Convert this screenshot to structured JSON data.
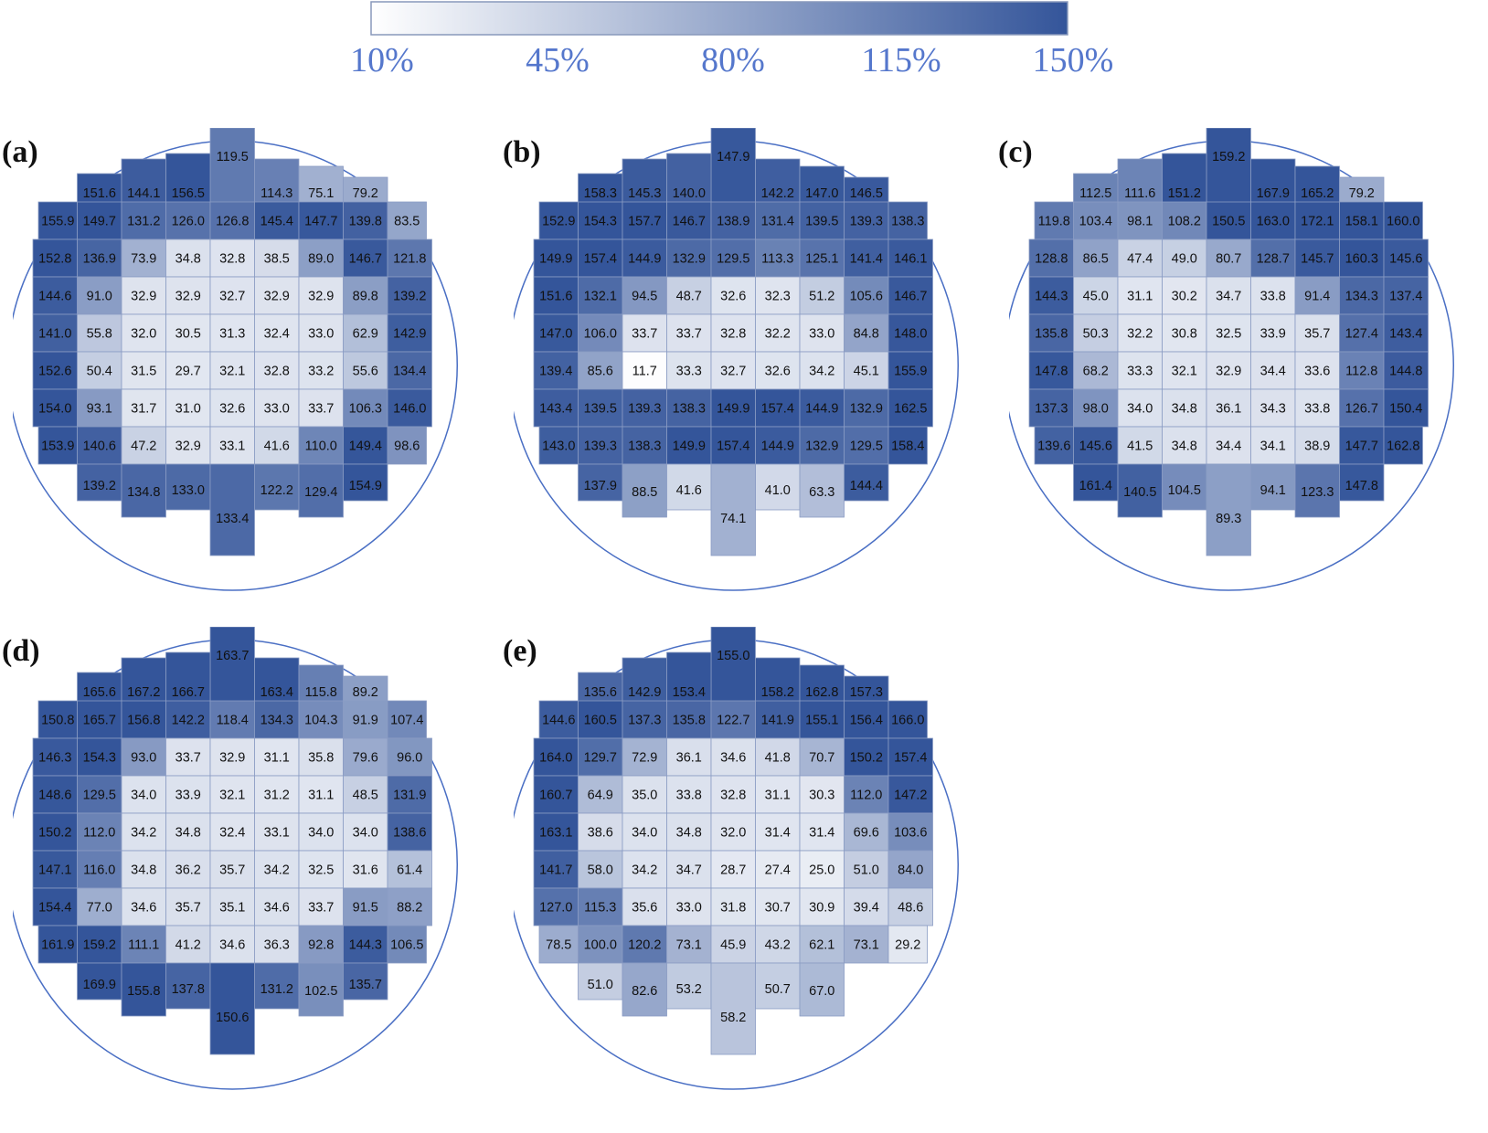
{
  "colorbar": {
    "ticks": [
      "10%",
      "45%",
      "80%",
      "115%",
      "150%"
    ],
    "min": 10,
    "max": 150,
    "color_low": "#ffffff",
    "color_high": "#34559a"
  },
  "chart_data": [
    {
      "type": "heatmap",
      "label": "(a)",
      "rows": [
        [
          null,
          null,
          null,
          null,
          119.5,
          null,
          null,
          null,
          null
        ],
        [
          null,
          151.6,
          144.1,
          156.5,
          null,
          114.3,
          75.1,
          79.2,
          null
        ],
        [
          155.9,
          149.7,
          131.2,
          126.0,
          126.8,
          145.4,
          147.7,
          139.8,
          83.5
        ],
        [
          152.8,
          136.9,
          73.9,
          34.8,
          32.8,
          38.5,
          89.0,
          146.7,
          121.8
        ],
        [
          144.6,
          91.0,
          32.9,
          32.9,
          32.7,
          32.9,
          32.9,
          89.8,
          139.2
        ],
        [
          141.0,
          55.8,
          32.0,
          30.5,
          31.3,
          32.4,
          33.0,
          62.9,
          142.9
        ],
        [
          152.6,
          50.4,
          31.5,
          29.7,
          32.1,
          32.8,
          33.2,
          55.6,
          134.4
        ],
        [
          154.0,
          93.1,
          31.7,
          31.0,
          32.6,
          33.0,
          33.7,
          106.3,
          146.0
        ],
        [
          153.9,
          140.6,
          47.2,
          32.9,
          33.1,
          41.6,
          110.0,
          149.4,
          98.6
        ],
        [
          null,
          139.2,
          134.8,
          133.0,
          null,
          122.2,
          129.4,
          154.9,
          null
        ],
        [
          null,
          null,
          null,
          null,
          133.4,
          null,
          null,
          null,
          null
        ]
      ]
    },
    {
      "type": "heatmap",
      "label": "(b)",
      "rows": [
        [
          null,
          null,
          null,
          null,
          147.9,
          null,
          null,
          null,
          null
        ],
        [
          null,
          158.3,
          145.3,
          140.0,
          null,
          142.2,
          147.0,
          146.5,
          null
        ],
        [
          152.9,
          154.3,
          157.7,
          146.7,
          138.9,
          131.4,
          139.5,
          139.3,
          138.3
        ],
        [
          149.9,
          157.4,
          144.9,
          132.9,
          129.5,
          113.3,
          125.1,
          141.4,
          146.1
        ],
        [
          151.6,
          132.1,
          94.5,
          48.7,
          32.6,
          32.3,
          51.2,
          105.6,
          146.7
        ],
        [
          147.0,
          106.0,
          33.7,
          33.7,
          32.8,
          32.2,
          33.0,
          84.8,
          148.0
        ],
        [
          139.4,
          85.6,
          11.7,
          33.3,
          32.7,
          32.6,
          34.2,
          45.1,
          155.9
        ],
        [
          143.4,
          139.5,
          139.3,
          138.3,
          149.9,
          157.4,
          144.9,
          132.9,
          162.5
        ],
        [
          143.0,
          139.3,
          138.3,
          149.9,
          157.4,
          144.9,
          132.9,
          129.5,
          158.4
        ],
        [
          null,
          137.9,
          88.5,
          41.6,
          null,
          41.0,
          63.3,
          144.4,
          null
        ],
        [
          null,
          null,
          null,
          null,
          74.1,
          null,
          null,
          null,
          null
        ]
      ]
    },
    {
      "type": "heatmap",
      "label": "(c)",
      "rows": [
        [
          null,
          null,
          null,
          null,
          159.2,
          null,
          null,
          null,
          null
        ],
        [
          null,
          112.5,
          111.6,
          151.2,
          null,
          167.9,
          165.2,
          79.2,
          null
        ],
        [
          119.8,
          103.4,
          98.1,
          108.2,
          150.5,
          163.0,
          172.1,
          158.1,
          160.0
        ],
        [
          128.8,
          86.5,
          47.4,
          49.0,
          80.7,
          128.7,
          145.7,
          160.3,
          145.6
        ],
        [
          144.3,
          45.0,
          31.1,
          30.2,
          34.7,
          33.8,
          91.4,
          134.3,
          137.4
        ],
        [
          135.8,
          50.3,
          32.2,
          30.8,
          32.5,
          33.9,
          35.7,
          127.4,
          143.4
        ],
        [
          147.8,
          68.2,
          33.3,
          32.1,
          32.9,
          34.4,
          33.6,
          112.8,
          144.8
        ],
        [
          137.3,
          98.0,
          34.0,
          34.8,
          36.1,
          34.3,
          33.8,
          126.7,
          150.4
        ],
        [
          139.6,
          145.6,
          41.5,
          34.8,
          34.4,
          34.1,
          38.9,
          147.7,
          162.8
        ],
        [
          null,
          161.4,
          140.5,
          104.5,
          null,
          94.1,
          123.3,
          147.8,
          null
        ],
        [
          null,
          null,
          null,
          null,
          89.3,
          null,
          null,
          null,
          null
        ]
      ]
    },
    {
      "type": "heatmap",
      "label": "(d)",
      "rows": [
        [
          null,
          null,
          null,
          null,
          163.7,
          null,
          null,
          null,
          null
        ],
        [
          null,
          165.6,
          167.2,
          166.7,
          null,
          163.4,
          115.8,
          89.2,
          null
        ],
        [
          150.8,
          165.7,
          156.8,
          142.2,
          118.4,
          134.3,
          104.3,
          91.9,
          107.4
        ],
        [
          146.3,
          154.3,
          93.0,
          33.7,
          32.9,
          31.1,
          35.8,
          79.6,
          96.0
        ],
        [
          148.6,
          129.5,
          34.0,
          33.9,
          32.1,
          31.2,
          31.1,
          48.5,
          131.9
        ],
        [
          150.2,
          112.0,
          34.2,
          34.8,
          32.4,
          33.1,
          34.0,
          34.0,
          138.6
        ],
        [
          147.1,
          116.0,
          34.8,
          36.2,
          35.7,
          34.2,
          32.5,
          31.6,
          61.4
        ],
        [
          154.4,
          77.0,
          34.6,
          35.7,
          35.1,
          34.6,
          33.7,
          91.5,
          88.2
        ],
        [
          161.9,
          159.2,
          111.1,
          41.2,
          34.6,
          36.3,
          92.8,
          144.3,
          106.5
        ],
        [
          null,
          169.9,
          155.8,
          137.8,
          null,
          131.2,
          102.5,
          135.7,
          null
        ],
        [
          null,
          null,
          null,
          null,
          150.6,
          null,
          null,
          null,
          null
        ]
      ]
    },
    {
      "type": "heatmap",
      "label": "(e)",
      "rows": [
        [
          null,
          null,
          null,
          null,
          155.0,
          null,
          null,
          null,
          null
        ],
        [
          null,
          135.6,
          142.9,
          153.4,
          null,
          158.2,
          162.8,
          157.3,
          null
        ],
        [
          144.6,
          160.5,
          137.3,
          135.8,
          122.7,
          141.9,
          155.1,
          156.4,
          166.0
        ],
        [
          164.0,
          129.7,
          72.9,
          36.1,
          34.6,
          41.8,
          70.7,
          150.2,
          157.4
        ],
        [
          160.7,
          64.9,
          35.0,
          33.8,
          32.8,
          31.1,
          30.3,
          112.0,
          147.2
        ],
        [
          163.1,
          38.6,
          34.0,
          34.8,
          32.0,
          31.4,
          31.4,
          69.6,
          103.6
        ],
        [
          141.7,
          58.0,
          34.2,
          34.7,
          28.7,
          27.4,
          25.0,
          51.0,
          84.0
        ],
        [
          127.0,
          115.3,
          35.6,
          33.0,
          31.8,
          30.7,
          30.9,
          39.4,
          48.6
        ],
        [
          78.5,
          100.0,
          120.2,
          73.1,
          45.9,
          43.2,
          62.1,
          73.1,
          29.2
        ],
        [
          null,
          51.0,
          82.6,
          53.2,
          null,
          50.7,
          67.0,
          null,
          null
        ],
        [
          null,
          null,
          null,
          null,
          58.2,
          null,
          null,
          null,
          null
        ]
      ]
    }
  ]
}
